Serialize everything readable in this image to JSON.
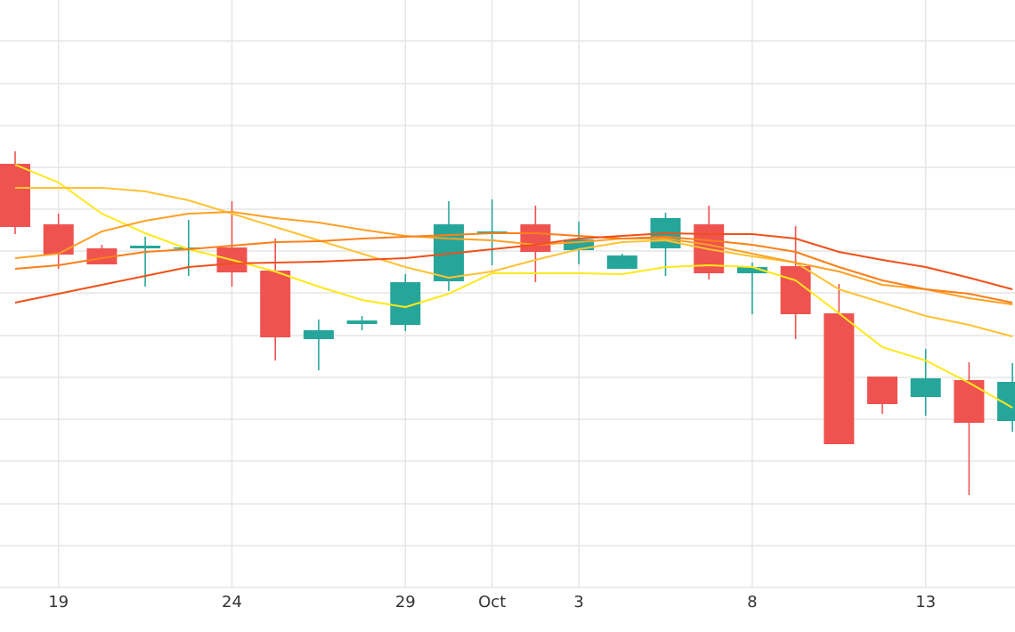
{
  "chart_data": {
    "type": "candlestick",
    "categories": [
      null,
      "19",
      null,
      null,
      null,
      "24",
      null,
      null,
      null,
      "29",
      null,
      "Oct",
      null,
      "3",
      null,
      null,
      null,
      "8",
      null,
      null,
      null,
      "13",
      null,
      null
    ],
    "open": [
      476,
      408,
      381,
      381,
      381,
      382,
      356,
      279,
      296,
      295,
      344,
      399,
      408,
      379,
      358,
      381,
      408,
      353,
      361,
      308,
      237,
      214,
      233,
      187
    ],
    "high": [
      490,
      420,
      385,
      394,
      413,
      434,
      392,
      301,
      305,
      352,
      434,
      436,
      429,
      411,
      375,
      421,
      429,
      365,
      406,
      341,
      237,
      268,
      253,
      252
    ],
    "low": [
      397,
      358,
      363,
      338,
      350,
      338,
      255,
      244,
      289,
      288,
      333,
      362,
      343,
      363,
      358,
      350,
      346,
      307,
      279,
      161,
      195,
      193,
      104,
      175
    ],
    "close": [
      405,
      374,
      363,
      384,
      382,
      354,
      281,
      289,
      300,
      343,
      408,
      400,
      377,
      391,
      373,
      415,
      353,
      360,
      307,
      161,
      206,
      235,
      185,
      231
    ],
    "up_color": "#26a69a",
    "down_color": "#ef5350",
    "lines": [
      {
        "color": "#ffe81a",
        "values": [
          475,
          455,
          420,
          398,
          380,
          368,
          355,
          338,
          323,
          315,
          330,
          353,
          353,
          353,
          352,
          360,
          362,
          360,
          345,
          308,
          270,
          255,
          230,
          202
        ]
      },
      {
        "color": "#ffc233",
        "values": [
          449,
          449,
          449,
          445,
          435,
          420,
          405,
          390,
          375,
          360,
          348,
          355,
          368,
          380,
          388,
          390,
          380,
          372,
          365,
          335,
          320,
          305,
          295,
          282
        ]
      },
      {
        "color": "#ffa024",
        "values": [
          370,
          375,
          400,
          412,
          420,
          422,
          415,
          410,
          402,
          395,
          392,
          390,
          385,
          388,
          392,
          392,
          385,
          375,
          365,
          355,
          340,
          335,
          325,
          318
        ]
      },
      {
        "color": "#fb7f18",
        "values": [
          358,
          362,
          370,
          377,
          380,
          384,
          388,
          389,
          392,
          394,
          396,
          398,
          398,
          395,
          392,
          394,
          390,
          385,
          377,
          360,
          345,
          335,
          330,
          320
        ]
      },
      {
        "color": "#f0501a",
        "values": [
          320,
          330,
          340,
          350,
          360,
          364,
          365,
          366,
          368,
          370,
          375,
          380,
          385,
          392,
          395,
          398,
          397,
          397,
          392,
          377,
          368,
          360,
          348,
          335
        ]
      }
    ],
    "ylim": [
      0,
      660
    ],
    "yticks": [
      0,
      47,
      94,
      142,
      189,
      236,
      283,
      331,
      378,
      425,
      472,
      519,
      566,
      614
    ],
    "grid": true
  }
}
